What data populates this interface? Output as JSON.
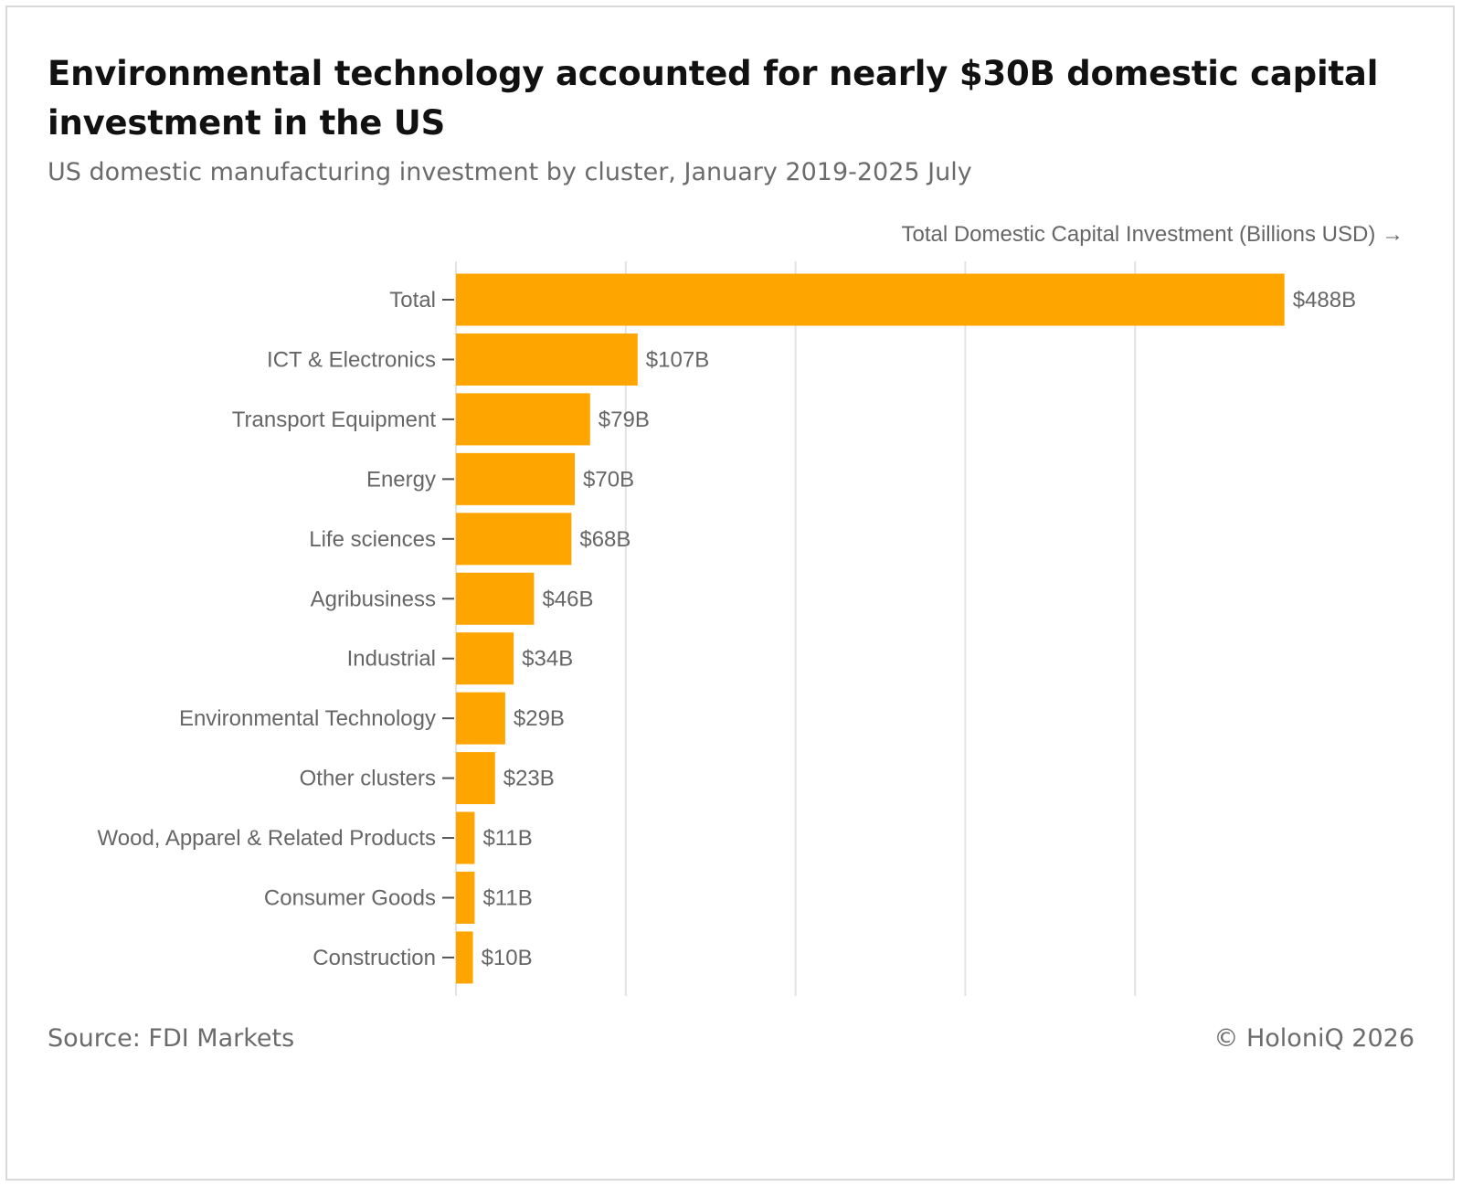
{
  "title": "Environmental technology accounted for nearly $30B domestic capital investment in the US",
  "subtitle": "US domestic manufacturing investment by cluster, January 2019-2025 July",
  "footer": {
    "source": "Source: FDI Markets",
    "copyright": "© HoloniQ 2026"
  },
  "colors": {
    "bar": "#FFA500",
    "grid": "#e3e3e3",
    "label": "#666666",
    "title": "#111111"
  },
  "chart_data": {
    "type": "bar",
    "orientation": "horizontal",
    "title": "Environmental technology accounted for nearly $30B domestic capital investment in the US",
    "subtitle": "US domestic manufacturing investment by cluster, January 2019-2025 July",
    "xlabel": "Total Domestic Capital Investment (Billions USD) →",
    "ylabel": "",
    "categories": [
      "Total",
      "ICT & Electronics",
      "Transport Equipment",
      "Energy",
      "Life sciences",
      "Agribusiness",
      "Industrial",
      "Environmental Technology",
      "Other clusters",
      "Wood, Apparel & Related Products",
      "Consumer Goods",
      "Construction"
    ],
    "values": [
      488,
      107,
      79,
      70,
      68,
      46,
      34,
      29,
      23,
      11,
      11,
      10
    ],
    "value_labels": [
      "$488B",
      "$107B",
      "$79B",
      "$70B",
      "$68B",
      "$46B",
      "$34B",
      "$29B",
      "$23B",
      "$11B",
      "$11B",
      "$10B"
    ],
    "xlim": [
      0,
      560
    ],
    "gridlines_at": [
      0,
      100,
      200,
      300,
      400
    ],
    "x_tick_labels_shown": false,
    "grid": true,
    "legend": "none"
  }
}
